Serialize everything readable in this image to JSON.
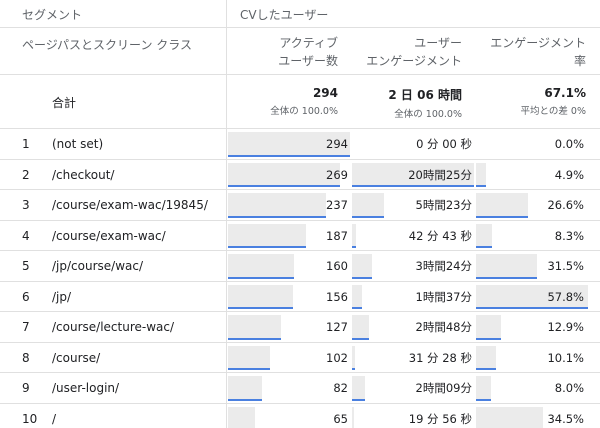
{
  "header": {
    "segment_label": "セグメント",
    "segment_value": "CVしたユーザー",
    "dimension_label": "ページパスとスクリーン クラス",
    "col_users": [
      "アクティブ",
      "ユーザー数"
    ],
    "col_engagement": [
      "ユーザー",
      "エンゲージメント"
    ],
    "col_rate": [
      "エンゲージメント",
      "率"
    ]
  },
  "totals": {
    "label": "合計",
    "users": "294",
    "users_sub": "全体の 100.0%",
    "engagement": "2 日 06 時間",
    "engagement_sub": "全体の 100.0%",
    "rate": "67.1%",
    "rate_sub": "平均との差 0%"
  },
  "rows": [
    {
      "index": "1",
      "page": "(not set)",
      "users": "294",
      "engagement": "0 分 00 秒",
      "rate": "0.0%",
      "users_frac": 1.0,
      "eng_frac": 0.0,
      "rate_frac": 0.0
    },
    {
      "index": "2",
      "page": "/checkout/",
      "users": "269",
      "engagement": "20時間25分",
      "rate": "4.9%",
      "users_frac": 0.915,
      "eng_frac": 1.0,
      "rate_frac": 0.085
    },
    {
      "index": "3",
      "page": "/course/exam-wac/19845/",
      "users": "237",
      "engagement": "5時間23分",
      "rate": "26.6%",
      "users_frac": 0.806,
      "eng_frac": 0.264,
      "rate_frac": 0.46
    },
    {
      "index": "4",
      "page": "/course/exam-wac/",
      "users": "187",
      "engagement": "42 分 43 秒",
      "rate": "8.3%",
      "users_frac": 0.636,
      "eng_frac": 0.035,
      "rate_frac": 0.144
    },
    {
      "index": "5",
      "page": "/jp/course/wac/",
      "users": "160",
      "engagement": "3時間24分",
      "rate": "31.5%",
      "users_frac": 0.544,
      "eng_frac": 0.167,
      "rate_frac": 0.545
    },
    {
      "index": "6",
      "page": "/jp/",
      "users": "156",
      "engagement": "1時間37分",
      "rate": "57.8%",
      "users_frac": 0.531,
      "eng_frac": 0.079,
      "rate_frac": 1.0
    },
    {
      "index": "7",
      "page": "/course/lecture-wac/",
      "users": "127",
      "engagement": "2時間48分",
      "rate": "12.9%",
      "users_frac": 0.432,
      "eng_frac": 0.137,
      "rate_frac": 0.223
    },
    {
      "index": "8",
      "page": "/course/",
      "users": "102",
      "engagement": "31 分 28 秒",
      "rate": "10.1%",
      "users_frac": 0.347,
      "eng_frac": 0.026,
      "rate_frac": 0.175
    },
    {
      "index": "9",
      "page": "/user-login/",
      "users": "82",
      "engagement": "2時間09分",
      "rate": "8.0%",
      "users_frac": 0.279,
      "eng_frac": 0.105,
      "rate_frac": 0.138
    },
    {
      "index": "10",
      "page": "/",
      "users": "65",
      "engagement": "19 分 56 秒",
      "rate": "34.5%",
      "users_frac": 0.221,
      "eng_frac": 0.016,
      "rate_frac": 0.597
    }
  ],
  "colors": {
    "bar_fill": "#ebebeb",
    "bar_line": "#4a80e0",
    "grid": "#e0e0e0"
  }
}
